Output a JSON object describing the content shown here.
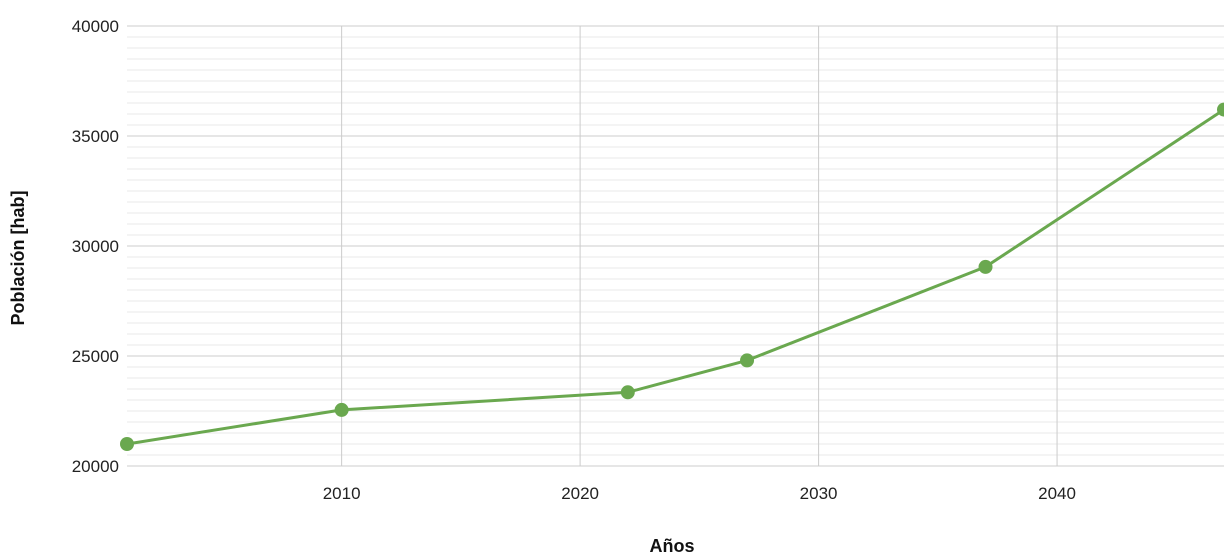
{
  "chart_data": {
    "type": "line",
    "title": "",
    "xlabel": "Años",
    "ylabel": "Población [hab]",
    "xlim": [
      2001,
      2047
    ],
    "ylim": [
      20000,
      40000
    ],
    "x_ticks": [
      2010,
      2020,
      2030,
      2040
    ],
    "y_ticks": [
      20000,
      25000,
      30000,
      35000,
      40000
    ],
    "y_minor_step": 500,
    "grid": true,
    "legend": "none",
    "series": [
      {
        "color": "#6aa84f",
        "points": [
          {
            "x": 2001,
            "y": 21000
          },
          {
            "x": 2010,
            "y": 22550
          },
          {
            "x": 2022,
            "y": 23350
          },
          {
            "x": 2027,
            "y": 24800
          },
          {
            "x": 2037,
            "y": 29050
          },
          {
            "x": 2047,
            "y": 36200
          }
        ]
      }
    ]
  }
}
